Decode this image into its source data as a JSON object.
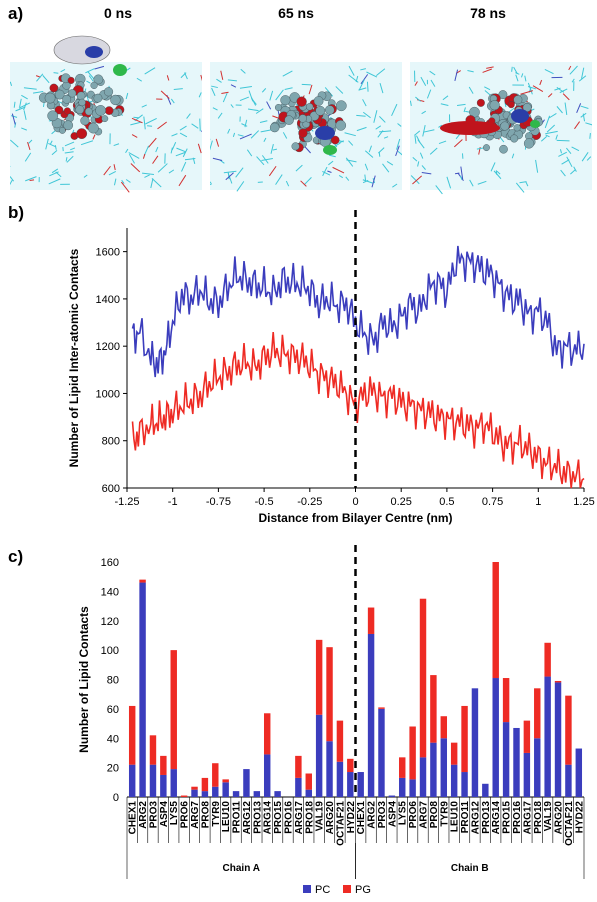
{
  "panel_a": {
    "label": "a)",
    "snapshots": [
      {
        "time": "0 ns",
        "variant": 0
      },
      {
        "time": "65 ns",
        "variant": 1
      },
      {
        "time": "78 ns",
        "variant": 2
      }
    ]
  },
  "panel_b": {
    "label": "b)"
  },
  "panel_c": {
    "label": "c)"
  },
  "colors": {
    "pc": "#3b3dbd",
    "pg": "#ee2b24",
    "lipid": "#3fc6d6"
  },
  "chart_data": [
    {
      "type": "line",
      "xlabel": "Distance from Bilayer Centre (nm)",
      "ylabel": "Number of Lipid Inter-atomic Contacts",
      "xlim": [
        -1.25,
        1.25
      ],
      "ylim": [
        600,
        1700
      ],
      "x_ticks": [
        "-1.25",
        "-1",
        "-0.75",
        "-0.5",
        "-0.25",
        "0",
        "0.25",
        "0.5",
        "0.75",
        "1",
        "1.25"
      ],
      "y_ticks": [
        "600",
        "800",
        "1000",
        "1200",
        "1400",
        "1600"
      ],
      "divider_x": 0,
      "series": [
        {
          "color": "#3b3dbd",
          "x": [
            -1.22,
            -1.18,
            -1.12,
            -1.08,
            -1.04,
            -1.0,
            -0.95,
            -0.9,
            -0.85,
            -0.8,
            -0.75,
            -0.7,
            -0.65,
            -0.6,
            -0.55,
            -0.5,
            -0.45,
            -0.4,
            -0.35,
            -0.3,
            -0.25,
            -0.2,
            -0.15,
            -0.1,
            -0.05,
            0.0,
            0.05,
            0.1,
            0.15,
            0.2,
            0.25,
            0.3,
            0.35,
            0.4,
            0.45,
            0.5,
            0.55,
            0.6,
            0.65,
            0.7,
            0.75,
            0.8,
            0.85,
            0.9,
            0.95,
            1.0,
            1.05,
            1.1,
            1.15,
            1.2,
            1.25
          ],
          "y": [
            1240,
            1260,
            1150,
            1120,
            1180,
            1300,
            1420,
            1400,
            1440,
            1390,
            1380,
            1450,
            1500,
            1480,
            1460,
            1450,
            1420,
            1480,
            1470,
            1460,
            1440,
            1380,
            1400,
            1370,
            1380,
            1300,
            1250,
            1220,
            1300,
            1280,
            1320,
            1380,
            1350,
            1440,
            1470,
            1430,
            1560,
            1560,
            1550,
            1520,
            1500,
            1440,
            1400,
            1390,
            1330,
            1350,
            1300,
            1180,
            1200,
            1180,
            1210
          ]
        },
        {
          "color": "#ee2b24",
          "x": [
            -1.22,
            -1.18,
            -1.12,
            -1.08,
            -1.04,
            -1.0,
            -0.95,
            -0.9,
            -0.85,
            -0.8,
            -0.75,
            -0.7,
            -0.65,
            -0.6,
            -0.55,
            -0.5,
            -0.45,
            -0.4,
            -0.35,
            -0.3,
            -0.25,
            -0.2,
            -0.15,
            -0.1,
            -0.05,
            0.0,
            0.05,
            0.1,
            0.15,
            0.2,
            0.25,
            0.3,
            0.35,
            0.4,
            0.45,
            0.5,
            0.55,
            0.6,
            0.65,
            0.7,
            0.75,
            0.8,
            0.85,
            0.9,
            0.95,
            1.0,
            1.05,
            1.1,
            1.15,
            1.2,
            1.25
          ],
          "y": [
            800,
            830,
            870,
            880,
            900,
            920,
            950,
            970,
            990,
            1040,
            1070,
            1090,
            1120,
            1130,
            1110,
            1150,
            1180,
            1170,
            1160,
            1150,
            1120,
            1080,
            1060,
            1040,
            1000,
            950,
            1000,
            1010,
            980,
            990,
            960,
            950,
            930,
            920,
            900,
            890,
            880,
            870,
            850,
            870,
            840,
            790,
            780,
            790,
            760,
            730,
            700,
            690,
            660,
            650,
            640
          ]
        }
      ]
    },
    {
      "type": "bar",
      "stacked": true,
      "ylabel": "Number of Lipid Contacts",
      "ylim": [
        0,
        160
      ],
      "y_ticks": [
        "0",
        "20",
        "40",
        "60",
        "80",
        "100",
        "120",
        "140",
        "160"
      ],
      "categories": [
        "CHEX1",
        "ARG2",
        "PRO3",
        "ASP4",
        "LYS5",
        "PRO6",
        "ARG7",
        "PRO8",
        "TYR9",
        "LEU10",
        "PRO11",
        "ARG12",
        "PRO13",
        "ARG14",
        "PRO15",
        "PRO16",
        "ARG17",
        "PRO18",
        "VAL19",
        "ARG20",
        "OCTAF21",
        "HYD22",
        "CHEX1",
        "ARG2",
        "PRO3",
        "ASP4",
        "LYS5",
        "PRO6",
        "ARG7",
        "PRO8",
        "TYR9",
        "LEU10",
        "PRO11",
        "ARG12",
        "PRO13",
        "ARG14",
        "PRO15",
        "PRO16",
        "ARG17",
        "PRO18",
        "VAL19",
        "ARG20",
        "OCTAF21",
        "HYD22"
      ],
      "groups": [
        {
          "label": "Chain A",
          "start": 0,
          "end": 21
        },
        {
          "label": "Chain B",
          "start": 22,
          "end": 43
        }
      ],
      "divider_after_index": 21,
      "series": [
        {
          "name": "PC",
          "color": "#3b3dbd",
          "values": [
            22,
            146,
            22,
            15,
            19,
            0,
            5,
            4,
            7,
            10,
            4,
            19,
            4,
            29,
            4,
            0,
            13,
            5,
            56,
            38,
            24,
            17,
            17,
            111,
            60,
            1,
            13,
            12,
            27,
            37,
            40,
            22,
            17,
            74,
            9,
            81,
            51,
            47,
            30,
            40,
            82,
            78,
            22,
            33
          ]
        },
        {
          "name": "PG",
          "color": "#ee2b24",
          "values": [
            40,
            2,
            20,
            13,
            81,
            1,
            2,
            9,
            16,
            2,
            0,
            0,
            0,
            28,
            0,
            0,
            15,
            11,
            51,
            64,
            28,
            9,
            0,
            18,
            1,
            0,
            14,
            36,
            108,
            46,
            15,
            15,
            45,
            0,
            0,
            79,
            30,
            0,
            22,
            34,
            23,
            1,
            47,
            0
          ]
        }
      ],
      "legend_placement": "bottom-center"
    }
  ]
}
